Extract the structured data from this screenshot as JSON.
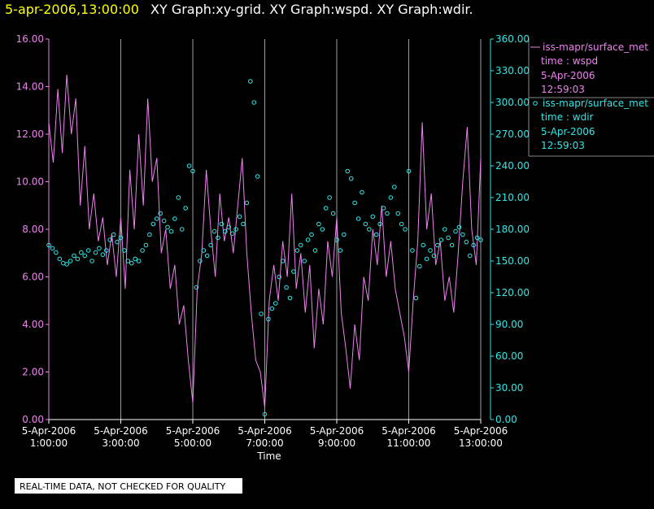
{
  "chart_data": {
    "type": "xy",
    "timestamp": "5-apr-2006,13:00:00",
    "title": "XY Graph:xy-grid.  XY Graph:wspd.  XY Graph:wdir.",
    "xlabel": "Time",
    "footer": "REAL-TIME DATA, NOT CHECKED FOR QUALITY",
    "xlim": [
      1,
      13
    ],
    "xticks": [
      {
        "value": 1,
        "date": "5-Apr-2006",
        "label": "1:00:00"
      },
      {
        "value": 3,
        "date": "5-Apr-2006",
        "label": "3:00:00"
      },
      {
        "value": 5,
        "date": "5-Apr-2006",
        "label": "5:00:00"
      },
      {
        "value": 7,
        "date": "5-Apr-2006",
        "label": "7:00:00"
      },
      {
        "value": 9,
        "date": "5-Apr-2006",
        "label": "9:00:00"
      },
      {
        "value": 11,
        "date": "5-Apr-2006",
        "label": "11:00:00"
      },
      {
        "value": 13,
        "date": "5-Apr-2006",
        "label": "13:00:00"
      }
    ],
    "ylim": [
      0,
      16
    ],
    "yticks": [
      {
        "value": 0,
        "label": "0.00"
      },
      {
        "value": 2,
        "label": "2.00"
      },
      {
        "value": 4,
        "label": "4.00"
      },
      {
        "value": 6,
        "label": "6.00"
      },
      {
        "value": 8,
        "label": "8.00"
      },
      {
        "value": 10,
        "label": "10.00"
      },
      {
        "value": 12,
        "label": "12.00"
      },
      {
        "value": 14,
        "label": "14.00"
      },
      {
        "value": 16,
        "label": "16.00"
      }
    ],
    "y2lim": [
      0,
      360
    ],
    "y2ticks": [
      {
        "value": 0,
        "label": "0.00"
      },
      {
        "value": 30,
        "label": "30.00"
      },
      {
        "value": 60,
        "label": "60.00"
      },
      {
        "value": 90,
        "label": "90.00"
      },
      {
        "value": 120,
        "label": "120.00"
      },
      {
        "value": 150,
        "label": "150.00"
      },
      {
        "value": 180,
        "label": "180.00"
      },
      {
        "value": 210,
        "label": "210.00"
      },
      {
        "value": 240,
        "label": "240.00"
      },
      {
        "value": 270,
        "label": "270.00"
      },
      {
        "value": 300,
        "label": "300.00"
      },
      {
        "value": 330,
        "label": "330.00"
      },
      {
        "value": 360,
        "label": "360.00"
      }
    ],
    "grid": true,
    "series": [
      {
        "name": "iss-mapr/surface_met",
        "label": "time : wspd",
        "date": "5-Apr-2006",
        "time": "12:59:03",
        "style": "line",
        "color": "#ee82ee",
        "x": [
          1,
          1.125,
          1.25,
          1.375,
          1.5,
          1.625,
          1.75,
          1.875,
          2,
          2.125,
          2.25,
          2.375,
          2.5,
          2.625,
          2.75,
          2.875,
          3,
          3.125,
          3.25,
          3.375,
          3.5,
          3.625,
          3.75,
          3.875,
          4,
          4.125,
          4.25,
          4.375,
          4.5,
          4.625,
          4.75,
          4.875,
          5,
          5.125,
          5.25,
          5.375,
          5.5,
          5.625,
          5.75,
          5.875,
          6,
          6.125,
          6.25,
          6.375,
          6.5,
          6.625,
          6.75,
          6.875,
          7,
          7.125,
          7.25,
          7.375,
          7.5,
          7.625,
          7.75,
          7.875,
          8,
          8.125,
          8.25,
          8.375,
          8.5,
          8.625,
          8.75,
          8.875,
          9,
          9.125,
          9.25,
          9.375,
          9.5,
          9.625,
          9.75,
          9.875,
          10,
          10.125,
          10.25,
          10.375,
          10.5,
          10.625,
          10.75,
          10.875,
          11,
          11.125,
          11.25,
          11.375,
          11.5,
          11.625,
          11.75,
          11.875,
          12,
          12.125,
          12.25,
          12.375,
          12.5,
          12.625,
          12.75,
          12.875,
          13
        ],
        "values": [
          12.5,
          10.8,
          13.9,
          11.2,
          14.5,
          12.0,
          13.5,
          9.0,
          11.5,
          8.0,
          9.5,
          7.5,
          8.5,
          6.5,
          7.8,
          6.0,
          8.5,
          5.5,
          10.5,
          8.0,
          12.0,
          9.0,
          13.5,
          10.0,
          11.0,
          7.0,
          8.0,
          5.5,
          6.5,
          4.0,
          4.8,
          2.5,
          0.7,
          5.5,
          7.0,
          10.5,
          8.0,
          6.0,
          9.5,
          7.5,
          8.5,
          7.0,
          9.0,
          11.0,
          7.0,
          4.5,
          2.5,
          2.0,
          0.5,
          5.0,
          6.5,
          5.0,
          7.5,
          6.0,
          9.5,
          5.5,
          7.0,
          4.5,
          6.5,
          3.0,
          5.5,
          4.0,
          7.5,
          6.0,
          8.5,
          4.5,
          3.0,
          1.3,
          4.0,
          2.5,
          6.0,
          5.0,
          8.0,
          6.5,
          9.0,
          6.0,
          7.5,
          5.5,
          4.5,
          3.5,
          2.0,
          5.0,
          7.5,
          12.5,
          8.0,
          9.5,
          6.5,
          7.5,
          5.0,
          6.0,
          4.5,
          7.0,
          10.0,
          12.3,
          8.0,
          6.5,
          11.0
        ]
      },
      {
        "name": "iss-mapr/surface_met",
        "label": "time : wdir",
        "date": "5-Apr-2006",
        "time": "12:59:03",
        "style": "points",
        "axis": "y2",
        "color": "#33e6e6",
        "x": [
          1,
          1.1,
          1.2,
          1.3,
          1.4,
          1.5,
          1.6,
          1.7,
          1.8,
          1.9,
          2,
          2.1,
          2.2,
          2.3,
          2.4,
          2.5,
          2.6,
          2.7,
          2.8,
          2.9,
          3,
          3.1,
          3.2,
          3.3,
          3.4,
          3.5,
          3.6,
          3.7,
          3.8,
          3.9,
          4,
          4.1,
          4.2,
          4.3,
          4.4,
          4.5,
          4.6,
          4.7,
          4.8,
          4.9,
          5,
          5.1,
          5.2,
          5.3,
          5.4,
          5.5,
          5.6,
          5.7,
          5.8,
          5.9,
          6,
          6.1,
          6.2,
          6.3,
          6.4,
          6.5,
          6.6,
          6.7,
          6.8,
          6.9,
          7,
          7.1,
          7.2,
          7.3,
          7.4,
          7.5,
          7.6,
          7.7,
          7.8,
          7.9,
          8,
          8.1,
          8.2,
          8.3,
          8.4,
          8.5,
          8.6,
          8.7,
          8.8,
          8.9,
          9,
          9.1,
          9.2,
          9.3,
          9.4,
          9.5,
          9.6,
          9.7,
          9.8,
          9.9,
          10,
          10.1,
          10.2,
          10.3,
          10.4,
          10.5,
          10.6,
          10.7,
          10.8,
          10.9,
          11,
          11.1,
          11.2,
          11.3,
          11.4,
          11.5,
          11.6,
          11.7,
          11.8,
          11.9,
          12,
          12.1,
          12.2,
          12.3,
          12.4,
          12.5,
          12.6,
          12.7,
          12.8,
          12.9,
          13
        ],
        "values": [
          165,
          162,
          158,
          152,
          148,
          147,
          150,
          155,
          152,
          158,
          155,
          160,
          150,
          158,
          162,
          156,
          160,
          170,
          175,
          168,
          172,
          160,
          150,
          148,
          152,
          150,
          160,
          165,
          175,
          185,
          190,
          195,
          188,
          182,
          178,
          190,
          210,
          180,
          200,
          240,
          235,
          125,
          150,
          160,
          155,
          165,
          178,
          172,
          185,
          178,
          182,
          176,
          180,
          192,
          185,
          205,
          320,
          300,
          230,
          100,
          5,
          95,
          105,
          110,
          135,
          150,
          125,
          115,
          140,
          160,
          165,
          150,
          170,
          175,
          160,
          185,
          180,
          200,
          210,
          195,
          170,
          160,
          175,
          235,
          228,
          205,
          190,
          215,
          185,
          180,
          192,
          175,
          185,
          200,
          195,
          210,
          220,
          195,
          185,
          180,
          235,
          160,
          115,
          145,
          165,
          152,
          160,
          155,
          165,
          170,
          180,
          172,
          165,
          178,
          182,
          175,
          168,
          155,
          165,
          172,
          170
        ]
      }
    ]
  }
}
